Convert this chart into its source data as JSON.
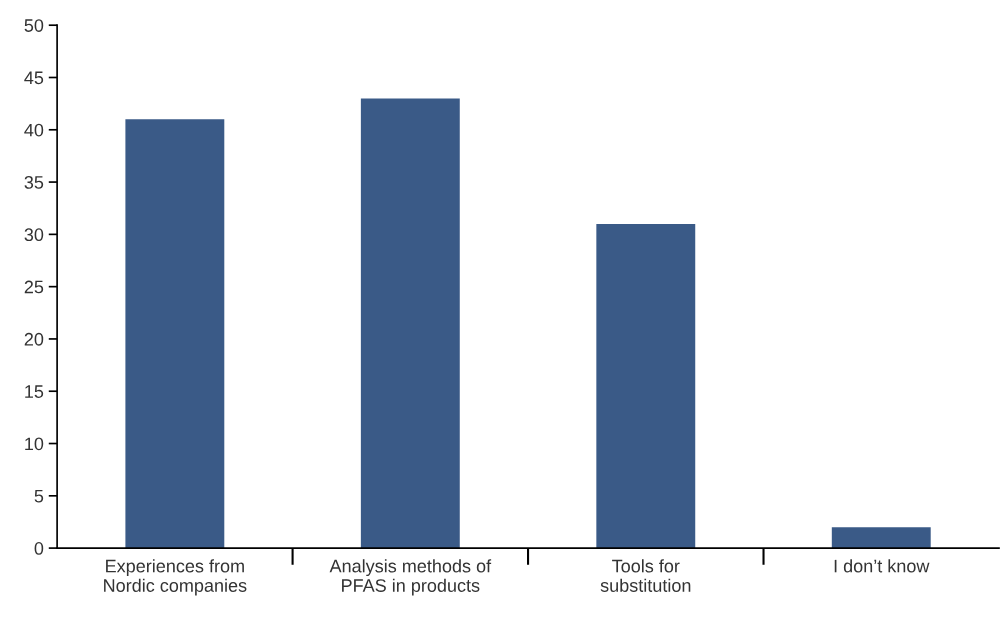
{
  "chart_data": {
    "type": "bar",
    "categories": [
      "Experiences from\nNordic companies",
      "Analysis methods of\nPFAS in products",
      "Tools for\nsubstitution",
      "I don’t know"
    ],
    "values": [
      41,
      43,
      31,
      2
    ],
    "color": "#3a5a87",
    "ylim": [
      0,
      50
    ],
    "yticks": [
      0,
      5,
      10,
      15,
      20,
      25,
      30,
      35,
      40,
      45,
      50
    ],
    "grid": false,
    "legend": false
  }
}
